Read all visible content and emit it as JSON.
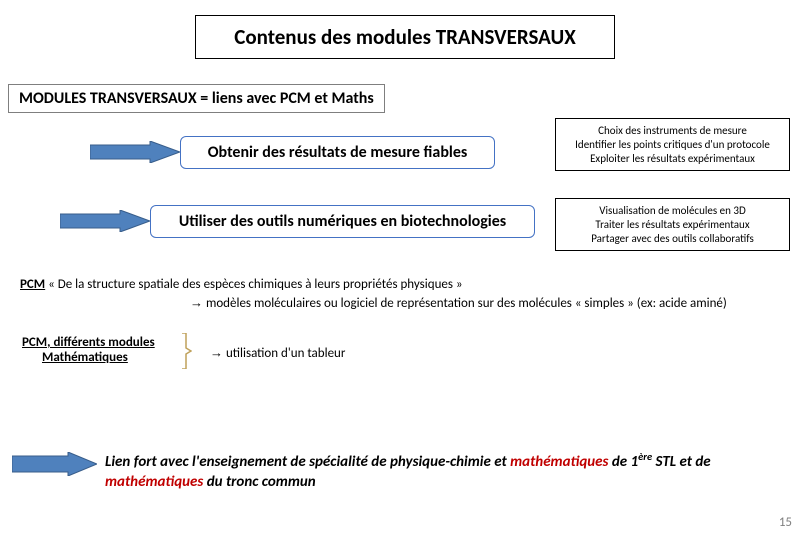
{
  "colors": {
    "arrow_fill": "#4f81bd",
    "arrow_border": "#385d8a",
    "rounded_border": "#4472c4",
    "red": "#c00000",
    "bracket": "#bfa15a"
  },
  "title": "Contenus des modules TRANSVERSAUX",
  "subtitle": "MODULES TRANSVERSAUX  = liens avec PCM et Maths",
  "row1": {
    "label": "Obtenir des résultats de mesure fiables",
    "desc": "Choix des instruments de mesure\nIdentifier les points critiques d'un protocole\nExploiter les résultats expérimentaux"
  },
  "row2": {
    "label": "Utiliser des outils numériques en biotechnologies",
    "desc": "Visualisation de molécules en 3D\nTraiter les résultats expérimentaux\nPartager avec des outils collaboratifs"
  },
  "pcm1": {
    "lead": "PCM",
    "rest": " « De la structure spatiale des espèces chimiques à leurs propriétés physiques »",
    "line2_arrow": "→",
    "line2": " modèles moléculaires ou logiciel de représentation sur des molécules « simples » (ex: acide aminé)"
  },
  "pcm2": {
    "line1": "PCM, différents modules",
    "line2": "Mathématiques",
    "arrow": "→",
    "text": " utilisation d'un tableur"
  },
  "final": {
    "part1": "Lien fort avec l'enseignement de spécialité de physique-chimie et ",
    "math1": "mathématiques",
    "part2": " de 1",
    "sup": "ère",
    "part3": " STL et de ",
    "math2": "mathématiques",
    "part4": " du tronc commun"
  },
  "page": "15"
}
